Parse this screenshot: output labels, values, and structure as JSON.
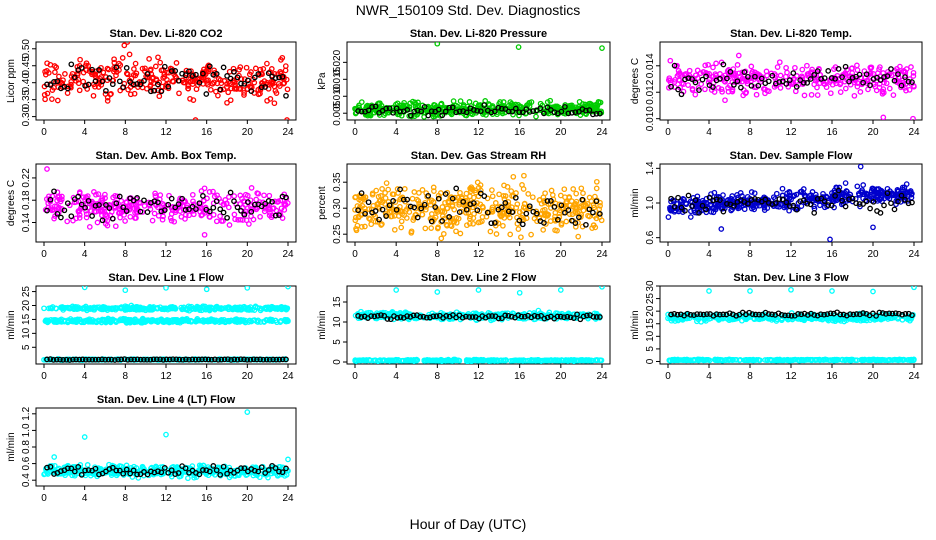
{
  "page": {
    "title": "NWR_150109  Std. Dev. Diagnostics",
    "xlabel": "Hour of Day (UTC)"
  },
  "chart_data": [
    {
      "type": "scatter",
      "title": "Stan. Dev. Li-820 CO2",
      "ylabel": "Licor ppm",
      "xlim": [
        0,
        24
      ],
      "ylim": [
        0.29,
        0.52
      ],
      "xticks": [
        0,
        4,
        8,
        12,
        16,
        20,
        24
      ],
      "yticks": [
        0.3,
        0.35,
        0.4,
        0.45,
        0.5
      ],
      "ytick_labels": [
        "0.30",
        "0.35",
        "0.40",
        "0.45",
        "0.50"
      ],
      "color": "#ff0000",
      "bands": [
        {
          "center": 0.41,
          "spread": 0.05,
          "n": 330
        }
      ],
      "black_band": {
        "center": 0.41,
        "spread": 0.045,
        "n": 70
      },
      "outliers": [
        [
          7.9,
          0.51
        ],
        [
          8.2,
          0.52
        ],
        [
          14.9,
          0.29
        ],
        [
          23.9,
          0.29
        ]
      ]
    },
    {
      "type": "scatter",
      "title": "Stan. Dev. Li-820 Pressure",
      "ylabel": "kPa",
      "xlim": [
        0,
        24
      ],
      "ylim": [
        0.003,
        0.026
      ],
      "xticks": [
        0,
        4,
        8,
        12,
        16,
        20,
        24
      ],
      "yticks": [
        0.005,
        0.01,
        0.015,
        0.02
      ],
      "ytick_labels": [
        "0.005",
        "0.010",
        "0.015",
        "0.020"
      ],
      "color": "#00cc00",
      "bands": [
        {
          "center": 0.0058,
          "spread": 0.0018,
          "n": 420,
          "trend": 3e-05
        }
      ],
      "black_band": {
        "center": 0.0058,
        "spread": 0.0012,
        "n": 70
      },
      "outliers": [
        [
          8.0,
          0.0255
        ],
        [
          15.9,
          0.0245
        ],
        [
          24.0,
          0.0242
        ]
      ]
    },
    {
      "type": "scatter",
      "title": "Stan. Dev. Li-820 Temp.",
      "ylabel": "degrees C",
      "xlim": [
        0,
        24
      ],
      "ylim": [
        0.0099,
        0.0158
      ],
      "xticks": [
        0,
        4,
        8,
        12,
        16,
        20,
        24
      ],
      "yticks": [
        0.01,
        0.012,
        0.014
      ],
      "ytick_labels": [
        "0.010",
        "0.012",
        "0.014"
      ],
      "color": "#ff00ff",
      "bands": [
        {
          "center": 0.013,
          "spread": 0.0011,
          "n": 330
        }
      ],
      "black_band": {
        "center": 0.013,
        "spread": 0.0009,
        "n": 70
      },
      "outliers": [
        [
          23.9,
          0.01
        ],
        [
          21.0,
          0.0101
        ]
      ]
    },
    {
      "type": "scatter",
      "title": "Stan. Dev. Amb. Box Temp.",
      "ylabel": "degrees C",
      "xlim": [
        0,
        24
      ],
      "ylim": [
        0.105,
        0.245
      ],
      "xticks": [
        0,
        4,
        8,
        12,
        16,
        20,
        24
      ],
      "yticks": [
        0.14,
        0.18,
        0.22
      ],
      "ytick_labels": [
        "0.14",
        "0.18",
        "0.22"
      ],
      "color": "#ff00ff",
      "bands": [
        {
          "center": 0.168,
          "spread": 0.025,
          "n": 330
        }
      ],
      "black_band": {
        "center": 0.168,
        "spread": 0.022,
        "n": 70
      },
      "outliers": [
        [
          0.3,
          0.236
        ],
        [
          15.8,
          0.118
        ]
      ]
    },
    {
      "type": "scatter",
      "title": "Stan. Dev. Gas Stream RH",
      "ylabel": "percent",
      "xlim": [
        0,
        24
      ],
      "ylim": [
        0.235,
        0.385
      ],
      "xticks": [
        0,
        4,
        8,
        12,
        16,
        20,
        24
      ],
      "yticks": [
        0.25,
        0.3,
        0.35
      ],
      "ytick_labels": [
        "0.25",
        "0.30",
        "0.35"
      ],
      "color": "#ffa500",
      "bands": [
        {
          "center": 0.3,
          "spread": 0.04,
          "n": 450
        }
      ],
      "black_band": {
        "center": 0.3,
        "spread": 0.035,
        "n": 70
      },
      "outliers": []
    },
    {
      "type": "scatter",
      "title": "Stan. Dev. Sample Flow",
      "ylabel": "ml/min",
      "xlim": [
        0,
        24
      ],
      "ylim": [
        0.55,
        1.45
      ],
      "xticks": [
        0,
        4,
        8,
        12,
        16,
        20,
        24
      ],
      "yticks": [
        0.6,
        1.0,
        1.4
      ],
      "ytick_labels": [
        "0.6",
        "1.0",
        "1.4"
      ],
      "color": "#0000cc",
      "bands": [
        {
          "center": 0.95,
          "spread": 0.1,
          "n": 420,
          "trend": 0.007
        }
      ],
      "black_band": {
        "center": 1.0,
        "spread": 0.1,
        "n": 70
      },
      "outliers": [
        [
          15.8,
          0.58
        ],
        [
          5.2,
          0.7
        ],
        [
          20.0,
          0.72
        ],
        [
          18.8,
          1.42
        ]
      ]
    },
    {
      "type": "scatter",
      "title": "Stan. Dev. Line 1 Flow",
      "ylabel": "ml/min",
      "xlim": [
        0,
        24
      ],
      "ylim": [
        -1,
        27
      ],
      "xticks": [
        0,
        4,
        8,
        12,
        16,
        20,
        24
      ],
      "yticks": [
        5,
        10,
        15,
        20,
        25
      ],
      "ytick_labels": [
        "5",
        "10",
        "15",
        "20",
        "25"
      ],
      "color": "#00ffff",
      "bands": [
        {
          "center": 19.0,
          "spread": 0.6,
          "n": 300
        },
        {
          "center": 14.5,
          "spread": 0.6,
          "n": 300
        },
        {
          "center": 0.6,
          "spread": 0.15,
          "n": 300
        }
      ],
      "black_band": {
        "center": 0.6,
        "spread": 0.15,
        "n": 75
      },
      "outliers": [
        [
          4.0,
          26.5
        ],
        [
          8.0,
          25.5
        ],
        [
          12.0,
          26.3
        ],
        [
          16.0,
          25.8
        ],
        [
          20.0,
          26.3
        ],
        [
          24.0,
          26.8
        ]
      ]
    },
    {
      "type": "scatter",
      "title": "Stan. Dev. Line 2 Flow",
      "ylabel": "ml/min",
      "xlim": [
        0,
        24
      ],
      "ylim": [
        -0.5,
        19
      ],
      "xticks": [
        0,
        4,
        8,
        12,
        16,
        20,
        24
      ],
      "yticks": [
        0,
        5,
        10,
        15
      ],
      "ytick_labels": [
        "0",
        "5",
        "10",
        "15"
      ],
      "color": "#00ffff",
      "bands": [
        {
          "center": 11.5,
          "spread": 0.8,
          "n": 380
        },
        {
          "center": 0.4,
          "spread": 0.15,
          "n": 300
        }
      ],
      "black_band": {
        "center": 11.3,
        "spread": 0.6,
        "n": 75
      },
      "outliers": [
        [
          4.0,
          18.0
        ],
        [
          8.0,
          17.5
        ],
        [
          12.0,
          18.0
        ],
        [
          16.0,
          17.3
        ],
        [
          20.0,
          18.0
        ],
        [
          24.0,
          18.8
        ]
      ]
    },
    {
      "type": "scatter",
      "title": "Stan. Dev. Line 3 Flow",
      "ylabel": "ml/min",
      "xlim": [
        0,
        24
      ],
      "ylim": [
        -1,
        30
      ],
      "xticks": [
        0,
        4,
        8,
        12,
        16,
        20,
        24
      ],
      "yticks": [
        0,
        5,
        10,
        15,
        20,
        25,
        30
      ],
      "ytick_labels": [
        "0",
        "5",
        "10",
        "15",
        "20",
        "25",
        "30"
      ],
      "color": "#00ffff",
      "bands": [
        {
          "center": 17.5,
          "spread": 1.2,
          "n": 380
        },
        {
          "center": 0.6,
          "spread": 0.2,
          "n": 300
        }
      ],
      "black_band": {
        "center": 18.8,
        "spread": 0.8,
        "n": 75
      },
      "outliers": [
        [
          4.0,
          28.0
        ],
        [
          8.0,
          28.0
        ],
        [
          12.0,
          28.5
        ],
        [
          16.0,
          28.0
        ],
        [
          20.0,
          27.8
        ],
        [
          24.0,
          29.5
        ]
      ]
    },
    {
      "type": "scatter",
      "title": "Stan. Dev. Line 4 (LT) Flow",
      "ylabel": "ml/min",
      "xlim": [
        0,
        24
      ],
      "ylim": [
        0.33,
        1.27
      ],
      "xticks": [
        0,
        4,
        8,
        12,
        16,
        20,
        24
      ],
      "yticks": [
        0.4,
        0.6,
        0.8,
        1.0,
        1.2
      ],
      "ytick_labels": [
        "0.4",
        "0.6",
        "0.8",
        "1.0",
        "1.2"
      ],
      "color": "#00ffff",
      "bands": [
        {
          "center": 0.51,
          "spread": 0.06,
          "n": 420
        }
      ],
      "black_band": {
        "center": 0.52,
        "spread": 0.05,
        "n": 70
      },
      "outliers": [
        [
          4.0,
          0.92
        ],
        [
          12.0,
          0.95
        ],
        [
          20.0,
          1.22
        ],
        [
          24.0,
          0.65
        ],
        [
          1.0,
          0.68
        ]
      ]
    }
  ]
}
